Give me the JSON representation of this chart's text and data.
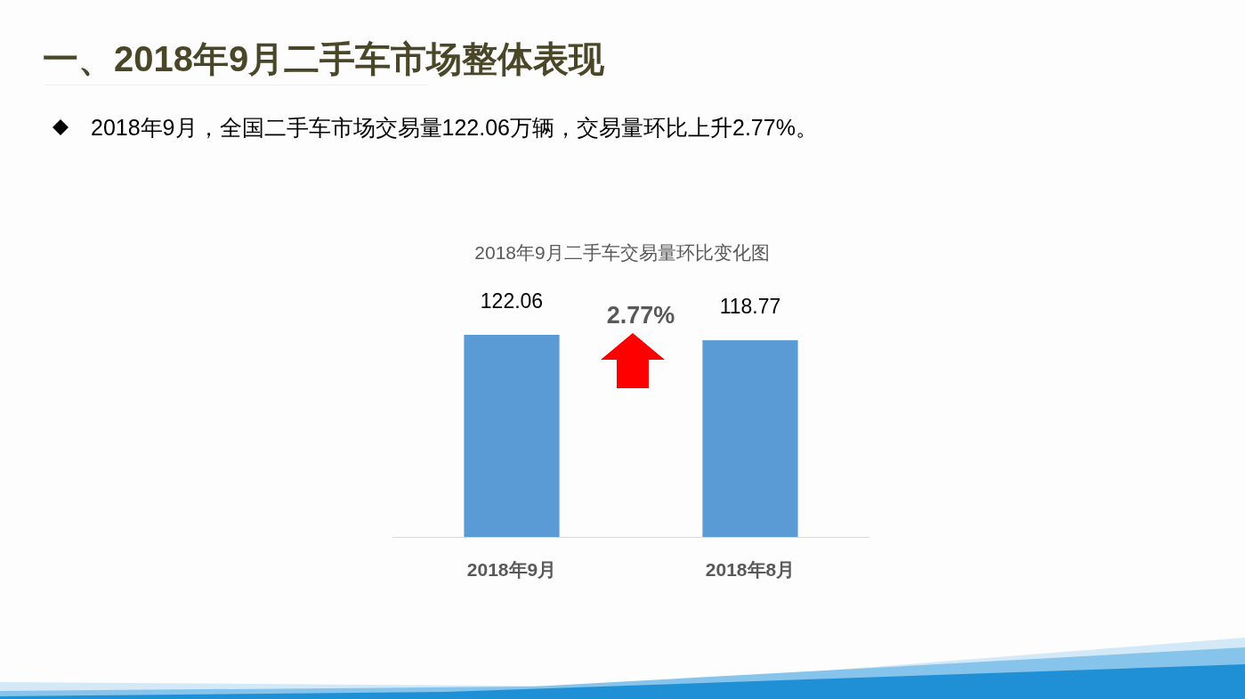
{
  "chart_data": {
    "type": "bar",
    "title": "2018年9月二手车交易量环比变化图",
    "categories": [
      "2018年9月",
      "2018年8月"
    ],
    "values": [
      122.06,
      118.77
    ],
    "color": "#5b9bd5",
    "data_labels": true,
    "annotations": [
      "一、2018年9月二手车市场整体表现",
      "2018年9月，全国二手车市场交易量122.06万辆，交易量环比上升2.77%。",
      "2.77%"
    ]
  }
}
